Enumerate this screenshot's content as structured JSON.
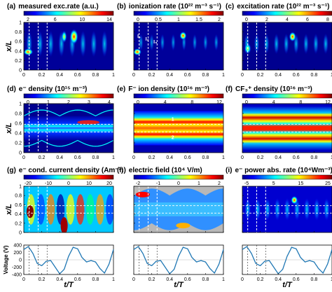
{
  "figure": {
    "x_axis_label": "t/T",
    "y_axis_label": "x/L",
    "voltage_label": "Voltage (V)"
  },
  "panels": [
    {
      "id": "a",
      "label": "(a)",
      "title": "measured exc.rate (a.u.)",
      "colorbar_ticks": [
        "2",
        "6",
        "10",
        "14"
      ],
      "annotations": []
    },
    {
      "id": "b",
      "label": "(b)",
      "title": "ionization rate (10²² m⁻³ s⁻¹)",
      "colorbar_ticks": [
        "0",
        "0.5",
        "1",
        "1.5",
        "2"
      ],
      "annotations": [
        "I₁",
        "I₂",
        "I₃"
      ]
    },
    {
      "id": "c",
      "label": "(c)",
      "title": "excitation rate (10²² m⁻³ s⁻¹)",
      "colorbar_ticks": [
        "0",
        "2",
        "4",
        "6",
        "8"
      ],
      "annotations": []
    },
    {
      "id": "d",
      "label": "(d)",
      "title": "e⁻ density (10¹⁵ m⁻³)",
      "colorbar_ticks": [
        "0",
        "1",
        "2",
        "3",
        "4"
      ],
      "annotations": []
    },
    {
      "id": "e",
      "label": "(e)",
      "title": "F⁻ ion density (10¹⁶ m⁻³)",
      "colorbar_ticks": [
        "0",
        "4",
        "8",
        "12"
      ],
      "annotations": [
        "1",
        "2"
      ]
    },
    {
      "id": "f",
      "label": "(f)",
      "title": "CF₃⁺ density (10¹⁶ m⁻³)",
      "colorbar_ticks": [
        "0",
        "4",
        "8",
        "12"
      ],
      "annotations": []
    },
    {
      "id": "g",
      "label": "(g)",
      "title": "e⁻ cond. current density (Am⁻²)",
      "colorbar_ticks": [
        "-20",
        "-10",
        "0",
        "10",
        "20"
      ],
      "annotations": []
    },
    {
      "id": "h",
      "label": "(h)",
      "title": "electric field (10⁴ V/m)",
      "colorbar_ticks": [
        "-2",
        "-1",
        "0",
        "1",
        "2"
      ],
      "annotations": []
    },
    {
      "id": "i",
      "label": "(i)",
      "title": "e⁻ power abs. rate (10⁴Wm⁻³)",
      "colorbar_ticks": [
        "-5",
        "5",
        "15",
        "25"
      ],
      "annotations": []
    }
  ],
  "y_ticks": [
    "0",
    "0.2",
    "0.4",
    "0.6",
    "0.8",
    "1"
  ],
  "x_ticks": [
    "0",
    "0.2",
    "0.4",
    "0.6",
    "0.8",
    "1"
  ],
  "voltage_ticks": [
    "400",
    "200",
    "0",
    "-200",
    "-400"
  ],
  "chart_data": {
    "type": "line",
    "title": "",
    "xlabel": "t/T",
    "ylabel": "Voltage (V)",
    "xlim": [
      0,
      1
    ],
    "ylim": [
      -400,
      400
    ],
    "x": [
      0,
      0.05,
      0.1,
      0.15,
      0.2,
      0.25,
      0.3,
      0.35,
      0.4,
      0.45,
      0.5,
      0.55,
      0.6,
      0.65,
      0.7,
      0.75,
      0.8,
      0.85,
      0.9,
      0.95,
      1
    ],
    "series": [
      {
        "values": [
          280,
          360,
          180,
          -100,
          -160,
          -40,
          -20,
          -200,
          -380,
          -260,
          100,
          340,
          300,
          60,
          -60,
          -20,
          -60,
          -240,
          -360,
          -120,
          280
        ]
      }
    ]
  }
}
